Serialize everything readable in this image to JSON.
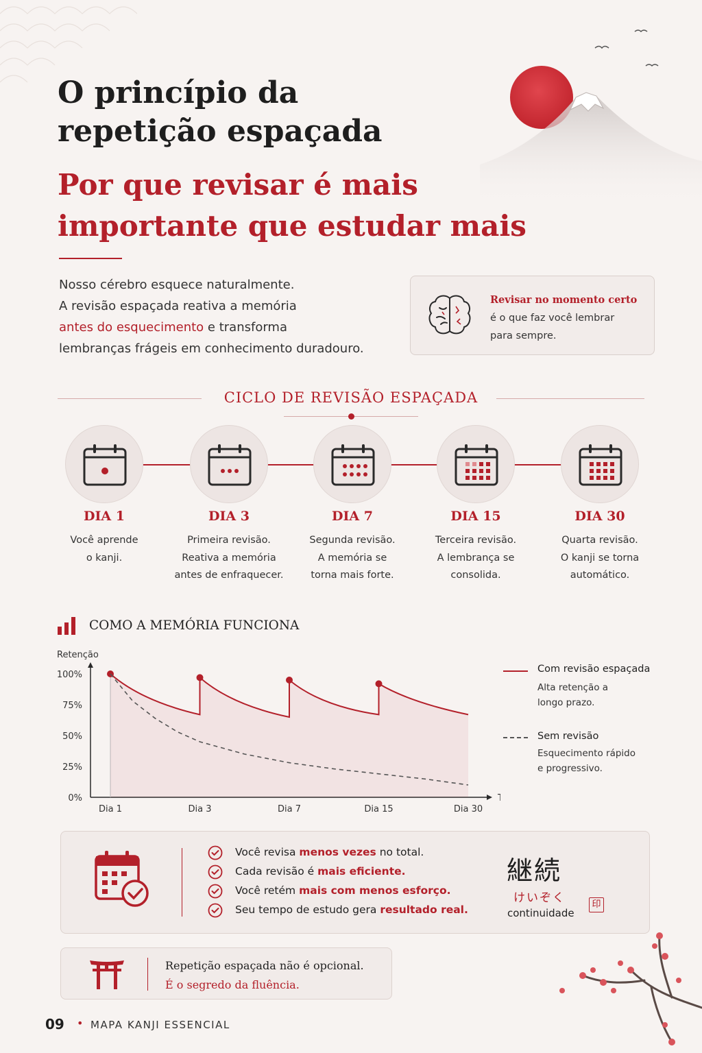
{
  "header": {
    "title": "O princípio da repetição espaçada",
    "subtitle": "Por que revisar é mais importante que estudar mais"
  },
  "intro": {
    "line1": "Nosso cérebro esquece naturalmente.",
    "line2": "A revisão espaçada reativa a memória",
    "line3_highlight": "antes do esquecimento",
    "line3_rest": " e transforma",
    "line4": "lembranças frágeis em conhecimento duradouro."
  },
  "callout": {
    "highlight": "Revisar no momento certo",
    "rest_line1": "é o que faz você lembrar",
    "rest_line2": "para sempre.",
    "icon": "brain-icon"
  },
  "cycle": {
    "title": "CICLO DE REVISÃO ESPAÇADA",
    "steps": [
      {
        "label": "DIA 1",
        "line1": "Você aprende",
        "line2": "o kanji.",
        "line3": ""
      },
      {
        "label": "DIA 3",
        "line1": "Primeira revisão.",
        "line2": "Reativa a memória",
        "line3": "antes de enfraquecer."
      },
      {
        "label": "DIA 7",
        "line1": "Segunda revisão.",
        "line2": "A memória se",
        "line3": "torna mais forte."
      },
      {
        "label": "DIA 15",
        "line1": "Terceira revisão.",
        "line2": "A lembrança se",
        "line3": "consolida."
      },
      {
        "label": "DIA 30",
        "line1": "Quarta revisão.",
        "line2": "O kanji se torna",
        "line3": "automático."
      }
    ]
  },
  "memory": {
    "title": "COMO A MEMÓRIA FUNCIONA",
    "legend": {
      "with_title": "Com revisão espaçada",
      "with_sub1": "Alta retenção a",
      "with_sub2": "longo prazo.",
      "without_title": "Sem revisão",
      "without_sub1": "Esquecimento rápido",
      "without_sub2": "e progressivo."
    }
  },
  "chart_data": {
    "type": "line",
    "ylabel": "Retenção",
    "xlabel": "Tempo",
    "yticks": [
      "100%",
      "75%",
      "50%",
      "25%",
      "0%"
    ],
    "ylim": [
      0,
      100
    ],
    "x_ticks": [
      "Dia 1",
      "Dia 3",
      "Dia 7",
      "Dia 15",
      "Dia 30"
    ],
    "grid": false,
    "legend_position": "right",
    "series": [
      {
        "name": "Com revisão espaçada",
        "style": "solid",
        "color": "#b3202a",
        "points": [
          [
            0.0,
            100
          ],
          [
            0.5,
            79
          ],
          [
            1.0,
            67
          ],
          [
            1.0,
            97
          ],
          [
            1.5,
            76
          ],
          [
            2.0,
            65
          ],
          [
            2.0,
            95
          ],
          [
            2.5,
            75
          ],
          [
            3.0,
            67
          ],
          [
            3.0,
            92
          ],
          [
            3.5,
            78
          ],
          [
            4.0,
            67
          ]
        ],
        "review_markers": [
          [
            0,
            100
          ],
          [
            1,
            97
          ],
          [
            2,
            95
          ],
          [
            3,
            92
          ]
        ]
      },
      {
        "name": "Sem revisão",
        "style": "dashed",
        "color": "#555555",
        "points": [
          [
            0.0,
            100
          ],
          [
            0.25,
            78
          ],
          [
            0.5,
            64
          ],
          [
            0.75,
            53
          ],
          [
            1.0,
            45
          ],
          [
            1.5,
            35
          ],
          [
            2.0,
            28
          ],
          [
            2.5,
            23
          ],
          [
            3.0,
            19
          ],
          [
            3.5,
            15
          ],
          [
            4.0,
            10
          ]
        ]
      }
    ]
  },
  "benefits": {
    "items": [
      {
        "pre": "Você revisa ",
        "hl": "menos vezes",
        "post": " no total."
      },
      {
        "pre": "Cada revisão é ",
        "hl": "mais eficiente.",
        "post": ""
      },
      {
        "pre": "Você retém ",
        "hl": "mais com menos esforço.",
        "post": ""
      },
      {
        "pre": "Seu tempo de estudo gera ",
        "hl": "resultado real.",
        "post": ""
      }
    ],
    "kanji": "継続",
    "kana": "けいぞく",
    "meaning": "continuidade",
    "seal": "印"
  },
  "quote": {
    "line1": "Repetição espaçada não é opcional.",
    "line2": "É o segredo da fluência."
  },
  "footer": {
    "page_number": "09",
    "separator": "•",
    "book": "MAPA KANJI ESSENCIAL"
  },
  "colors": {
    "accent": "#b3202a",
    "background": "#f7f3f1"
  }
}
